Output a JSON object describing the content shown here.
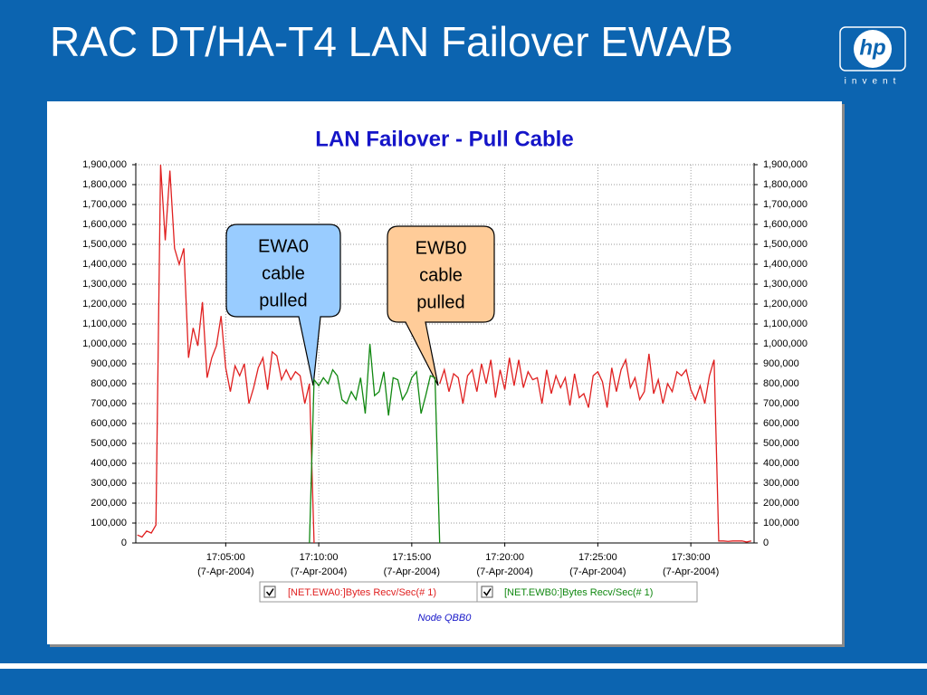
{
  "slide": {
    "title": "RAC DT/HA-T4 LAN Failover EWA/B",
    "logo": "hp",
    "logo_tagline": "invent"
  },
  "chart_data": {
    "type": "line",
    "title": "LAN Failover - Pull Cable",
    "footer": "Node QBB0",
    "x": [
      "17:00:15",
      "17:00:30",
      "17:00:45",
      "17:01:00",
      "17:01:15",
      "17:01:30",
      "17:01:45",
      "17:02:00",
      "17:02:15",
      "17:02:30",
      "17:02:45",
      "17:03:00",
      "17:03:15",
      "17:03:30",
      "17:03:45",
      "17:04:00",
      "17:04:15",
      "17:04:30",
      "17:04:45",
      "17:05:00",
      "17:05:15",
      "17:05:30",
      "17:05:45",
      "17:06:00",
      "17:06:15",
      "17:06:30",
      "17:06:45",
      "17:07:00",
      "17:07:15",
      "17:07:30",
      "17:07:45",
      "17:08:00",
      "17:08:15",
      "17:08:30",
      "17:08:45",
      "17:09:00",
      "17:09:15",
      "17:09:30",
      "17:09:45",
      "17:10:00",
      "17:10:15",
      "17:10:30",
      "17:10:45",
      "17:11:00",
      "17:11:15",
      "17:11:30",
      "17:11:45",
      "17:12:00",
      "17:12:15",
      "17:12:30",
      "17:12:45",
      "17:13:00",
      "17:13:15",
      "17:13:30",
      "17:13:45",
      "17:14:00",
      "17:14:15",
      "17:14:30",
      "17:14:45",
      "17:15:00",
      "17:15:15",
      "17:15:30",
      "17:15:45",
      "17:16:00",
      "17:16:15",
      "17:16:30",
      "17:16:45",
      "17:17:00",
      "17:17:15",
      "17:17:30",
      "17:17:45",
      "17:18:00",
      "17:18:15",
      "17:18:30",
      "17:18:45",
      "17:19:00",
      "17:19:15",
      "17:19:30",
      "17:19:45",
      "17:20:00",
      "17:20:15",
      "17:20:30",
      "17:20:45",
      "17:21:00",
      "17:21:15",
      "17:21:30",
      "17:21:45",
      "17:22:00",
      "17:22:15",
      "17:22:30",
      "17:22:45",
      "17:23:00",
      "17:23:15",
      "17:23:30",
      "17:23:45",
      "17:24:00",
      "17:24:15",
      "17:24:30",
      "17:24:45",
      "17:25:00",
      "17:25:15",
      "17:25:30",
      "17:25:45",
      "17:26:00",
      "17:26:15",
      "17:26:30",
      "17:26:45",
      "17:27:00",
      "17:27:15",
      "17:27:30",
      "17:27:45",
      "17:28:00",
      "17:28:15",
      "17:28:30",
      "17:28:45",
      "17:29:00",
      "17:29:15",
      "17:29:30",
      "17:29:45",
      "17:30:00",
      "17:30:15",
      "17:30:30",
      "17:30:45",
      "17:31:00",
      "17:31:15",
      "17:31:30",
      "17:31:45",
      "17:32:00",
      "17:32:15",
      "17:32:30",
      "17:32:45",
      "17:33:00",
      "17:33:15"
    ],
    "series": [
      {
        "name": "[NET.EWA0:]Bytes Recv/Sec(# 1)",
        "color": "#e02020",
        "values": [
          40000,
          30000,
          60000,
          50000,
          90000,
          1900000,
          1520000,
          1870000,
          1480000,
          1400000,
          1480000,
          930000,
          1080000,
          990000,
          1210000,
          830000,
          930000,
          990000,
          1140000,
          880000,
          760000,
          890000,
          840000,
          900000,
          700000,
          780000,
          880000,
          930000,
          770000,
          960000,
          940000,
          820000,
          870000,
          820000,
          860000,
          840000,
          700000,
          800000,
          0,
          null,
          null,
          null,
          null,
          null,
          null,
          null,
          null,
          null,
          null,
          null,
          null,
          null,
          null,
          null,
          null,
          null,
          null,
          null,
          null,
          null,
          null,
          null,
          null,
          null,
          null,
          800000,
          870000,
          760000,
          850000,
          830000,
          700000,
          840000,
          870000,
          760000,
          900000,
          800000,
          920000,
          730000,
          870000,
          770000,
          930000,
          790000,
          920000,
          780000,
          860000,
          820000,
          830000,
          700000,
          870000,
          750000,
          840000,
          780000,
          830000,
          690000,
          850000,
          730000,
          750000,
          680000,
          840000,
          860000,
          810000,
          680000,
          880000,
          760000,
          870000,
          920000,
          780000,
          830000,
          720000,
          760000,
          950000,
          750000,
          820000,
          700000,
          800000,
          760000,
          860000,
          840000,
          870000,
          770000,
          720000,
          790000,
          700000,
          840000,
          920000,
          10000,
          10000,
          8000,
          10000,
          10000,
          10000,
          5000,
          10000
        ]
      },
      {
        "name": "[NET.EWB0:]Bytes Recv/Sec(# 1)",
        "color": "#118811",
        "values": [
          null,
          null,
          null,
          null,
          null,
          null,
          null,
          null,
          null,
          null,
          null,
          null,
          null,
          null,
          null,
          null,
          null,
          null,
          null,
          null,
          null,
          null,
          null,
          null,
          null,
          null,
          null,
          null,
          null,
          null,
          null,
          null,
          null,
          null,
          null,
          null,
          null,
          0,
          820000,
          790000,
          830000,
          800000,
          870000,
          840000,
          720000,
          700000,
          760000,
          720000,
          830000,
          650000,
          1000000,
          740000,
          760000,
          860000,
          640000,
          830000,
          820000,
          720000,
          760000,
          830000,
          860000,
          650000,
          740000,
          840000,
          830000,
          0,
          null,
          null,
          null,
          null,
          null,
          null,
          null,
          null,
          null,
          null,
          null,
          null,
          null,
          null,
          null,
          null,
          null,
          null,
          null,
          null,
          null,
          null,
          null,
          null,
          null,
          null,
          null,
          null,
          null,
          null,
          null,
          null,
          null,
          null,
          null,
          null,
          null,
          null,
          null,
          null,
          null,
          null,
          null,
          null,
          null,
          null,
          null,
          null,
          null,
          null,
          null,
          null,
          null,
          null,
          null,
          null,
          null,
          null,
          null,
          null,
          null,
          null,
          null,
          null,
          null,
          null,
          null
        ]
      }
    ],
    "xlim": [
      "17:00:10",
      "17:33:24"
    ],
    "xticks": [
      {
        "value": "17:05:00",
        "label": [
          "17:05:00",
          "(7-Apr-2004)"
        ]
      },
      {
        "value": "17:10:00",
        "label": [
          "17:10:00",
          "(7-Apr-2004)"
        ]
      },
      {
        "value": "17:15:00",
        "label": [
          "17:15:00",
          "(7-Apr-2004)"
        ]
      },
      {
        "value": "17:20:00",
        "label": [
          "17:20:00",
          "(7-Apr-2004)"
        ]
      },
      {
        "value": "17:25:00",
        "label": [
          "17:25:00",
          "(7-Apr-2004)"
        ]
      },
      {
        "value": "17:30:00",
        "label": [
          "17:30:00",
          "(7-Apr-2004)"
        ]
      }
    ],
    "ylim": [
      0,
      1900000
    ],
    "yticks": [
      0,
      {
        "value": 100000,
        "label": "100,000"
      },
      {
        "value": 200000,
        "label": "200,000"
      },
      {
        "value": 300000,
        "label": "300,000"
      },
      {
        "value": 400000,
        "label": "400,000"
      },
      {
        "value": 500000,
        "label": "500,000"
      },
      {
        "value": 600000,
        "label": "600,000"
      },
      {
        "value": 700000,
        "label": "700,000"
      },
      {
        "value": 800000,
        "label": "800,000"
      },
      {
        "value": 900000,
        "label": "900,000"
      },
      {
        "value": 1000000,
        "label": "1,000,000"
      },
      {
        "value": 1100000,
        "label": "1,100,000"
      },
      {
        "value": 1200000,
        "label": "1,200,000"
      },
      {
        "value": 1300000,
        "label": "1,300,000"
      },
      {
        "value": 1400000,
        "label": "1,400,000"
      },
      {
        "value": 1500000,
        "label": "1,500,000"
      },
      {
        "value": 1600000,
        "label": "1,600,000"
      },
      {
        "value": 1700000,
        "label": "1,700,000"
      },
      {
        "value": 1800000,
        "label": "1,800,000"
      },
      {
        "value": 1900000,
        "label": "1,900,000"
      }
    ],
    "grid": true,
    "annotations": [
      {
        "text": [
          "EWA0",
          "cable",
          "pulled"
        ]
      },
      {
        "text": [
          "EWB0",
          "cable",
          "pulled"
        ]
      }
    ]
  }
}
